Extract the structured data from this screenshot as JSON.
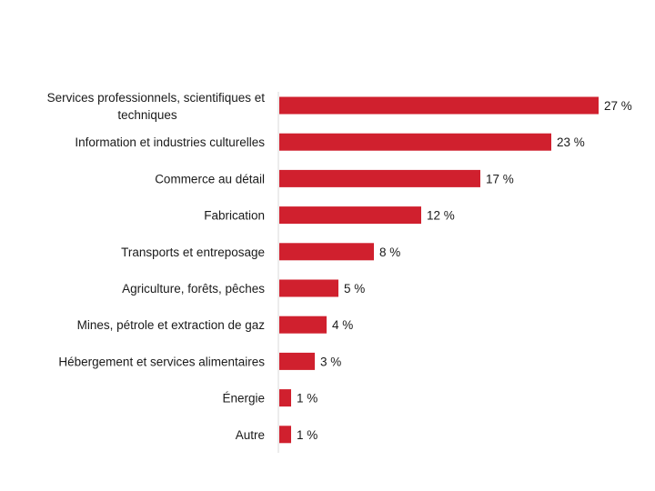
{
  "chart_data": {
    "type": "bar",
    "orientation": "horizontal",
    "categories": [
      [
        "Services professionnels, scientifiques et",
        "techniques"
      ],
      [
        "Information et industries culturelles"
      ],
      [
        "Commerce au détail"
      ],
      [
        "Fabrication"
      ],
      [
        "Transports et entreposage"
      ],
      [
        "Agriculture, forêts, pêches"
      ],
      [
        "Mines, pétrole et extraction de gaz"
      ],
      [
        "Hébergement et services alimentaires"
      ],
      [
        "Énergie"
      ],
      [
        "Autre"
      ]
    ],
    "values": [
      27,
      23,
      17,
      12,
      8,
      5,
      4,
      3,
      1,
      1
    ],
    "value_labels": [
      "27 %",
      "23 %",
      "17 %",
      "12 %",
      "8 %",
      "5 %",
      "4 %",
      "3 %",
      "1 %",
      "1 %"
    ],
    "unit": "%",
    "xlim": [
      0,
      27
    ],
    "bar_color": "#d0202e",
    "axis_color": "#d9d9d9",
    "grid": false,
    "legend": "none"
  }
}
